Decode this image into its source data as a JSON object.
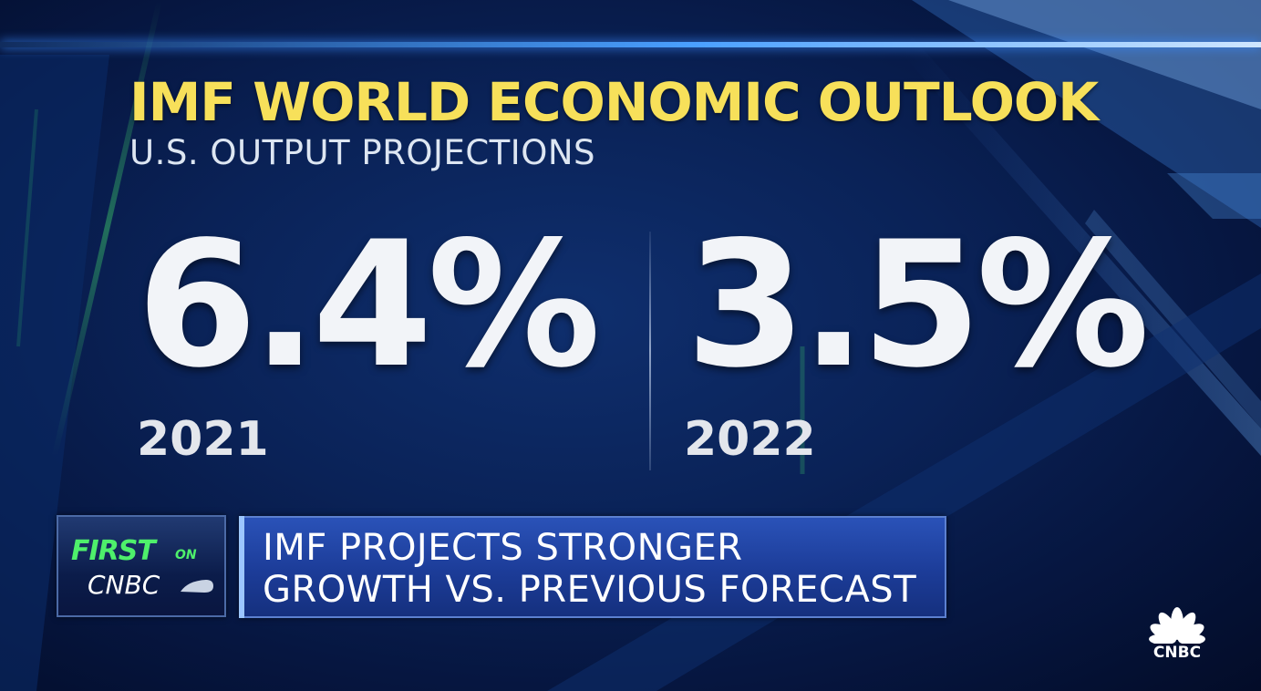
{
  "graphic": {
    "title": "IMF WORLD ECONOMIC OUTLOOK",
    "subtitle": "U.S. OUTPUT PROJECTIONS",
    "stats": [
      {
        "value": "6.4%",
        "year": "2021"
      },
      {
        "value": "3.5%",
        "year": "2022"
      }
    ]
  },
  "lower_third": {
    "badge": {
      "first": "FIRST",
      "on": "ON",
      "brand": "CNBC"
    },
    "headline_line1": "IMF PROJECTS STRONGER",
    "headline_line2": "GROWTH VS. PREVIOUS FORECAST"
  },
  "logo": {
    "icon": "peacock-icon",
    "text": "CNBC"
  },
  "colors": {
    "title": "#f7e05a",
    "background": "#0a2257",
    "ticker": "#1c3c98",
    "badge_green": "#4ef06b"
  }
}
